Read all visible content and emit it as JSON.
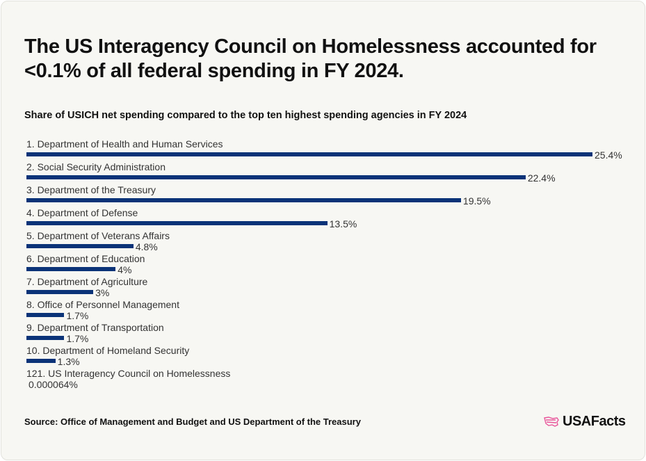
{
  "header": {
    "title": "The US Interagency Council on Homelessness accounted for <0.1% of all federal spending in FY 2024.",
    "subtitle": "Share of USICH net spending compared to the top ten highest spending agencies in FY 2024"
  },
  "chart_data": {
    "type": "bar",
    "orientation": "horizontal",
    "categories": [
      "1. Department of Health and Human Services",
      "2. Social Security Administration",
      "3. Department of the Treasury",
      "4. Department of Defense",
      "5. Department of Veterans Affairs",
      "6. Department of Education",
      "7. Department of Agriculture",
      "8. Office of Personnel Management",
      "9. Department of Transportation",
      "10. Department of Homeland Security",
      "121. US Interagency Council on Homelessness"
    ],
    "values": [
      25.4,
      22.4,
      19.5,
      13.5,
      4.8,
      4,
      3,
      1.7,
      1.7,
      1.3,
      6.4e-05
    ],
    "value_labels": [
      "25.4%",
      "22.4%",
      "19.5%",
      "13.5%",
      "4.8%",
      "4%",
      "3%",
      "1.7%",
      "1.7%",
      "1.3%",
      "0.000064%"
    ],
    "unit": "%",
    "xlim": [
      0,
      25.4
    ],
    "grid": false,
    "bar_color": "#0b3378"
  },
  "footer": {
    "source": "Source: Office of Management and Budget and US Department of the Treasury",
    "logo_text": "USAFacts",
    "logo_color": "#e8559a"
  }
}
